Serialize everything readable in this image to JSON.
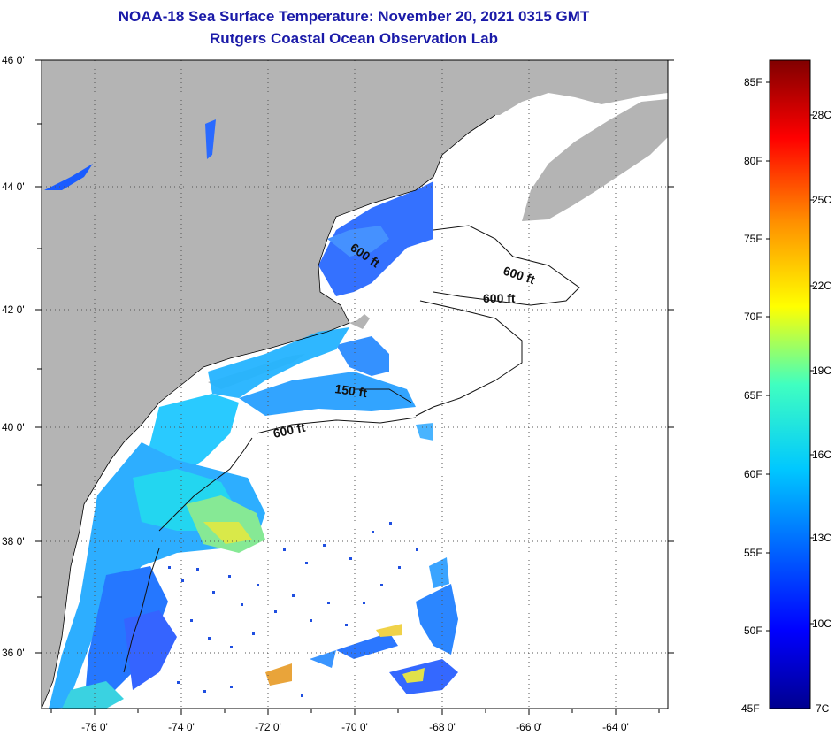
{
  "header": {
    "title": "NOAA-18 Sea Surface Temperature:  November 20, 2021 0315 GMT",
    "subtitle": "Rutgers Coastal Ocean Observation Lab"
  },
  "map": {
    "lat_labels": [
      "46 0'",
      "44 0'",
      "42 0'",
      "40 0'",
      "38 0'",
      "36 0'"
    ],
    "lon_labels": [
      "-76 0'",
      "-74 0'",
      "-72 0'",
      "-70 0'",
      "-68 0'",
      "-66 0'",
      "-64 0'"
    ],
    "contour_labels": [
      "600 ft",
      "600 ft",
      "600 ft",
      "150 ft",
      "600 ft"
    ],
    "land_color": "#b4b4b4",
    "ocean_missing_color": "#ffffff"
  },
  "colorbar": {
    "fahrenheit_labels": [
      "85F",
      "80F",
      "75F",
      "70F",
      "65F",
      "60F",
      "55F",
      "50F",
      "45F"
    ],
    "celsius_labels": [
      "28C",
      "25C",
      "22C",
      "19C",
      "16C",
      "13C",
      "10C",
      "7C"
    ],
    "scale_colors": [
      "#00008f",
      "#0000ff",
      "#0080ff",
      "#00ffff",
      "#80ff80",
      "#ffff00",
      "#ff8000",
      "#ff0000",
      "#800000"
    ]
  }
}
